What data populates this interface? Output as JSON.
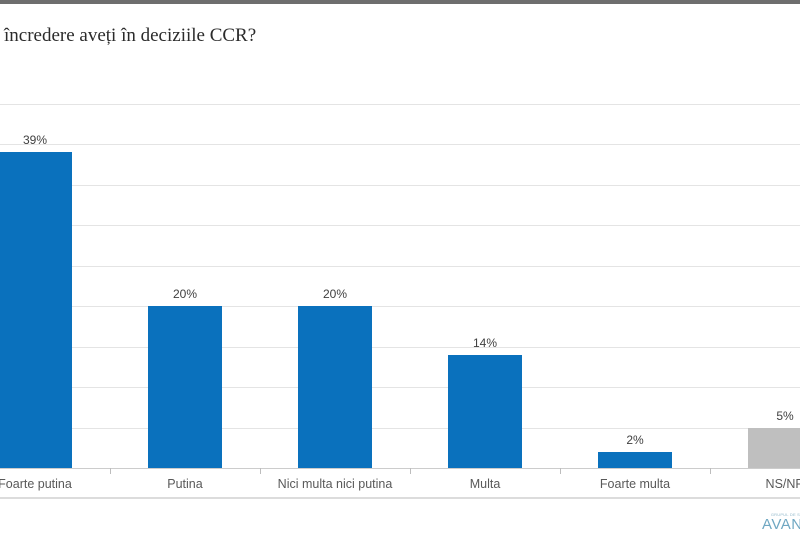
{
  "window": {
    "top_edge_color": "#6E6E6E"
  },
  "chart_data": {
    "type": "bar",
    "title": "încredere aveți în deciziile CCR?",
    "categories": [
      "Foarte putina",
      "Putina",
      "Nici multa nici putina",
      "Multa",
      "Foarte multa",
      "NS/NR"
    ],
    "values": [
      39,
      20,
      20,
      14,
      2,
      5
    ],
    "value_labels": [
      "39%",
      "20%",
      "20%",
      "14%",
      "2%",
      "5%"
    ],
    "xlabel": "",
    "ylabel": "",
    "ylim": [
      0,
      45
    ],
    "gridline_step_pct": 5,
    "grid": "on",
    "legend": "none",
    "bar_colors": [
      "#0A71BD",
      "#0A71BD",
      "#0A71BD",
      "#0A71BD",
      "#0A71BD",
      "#BFBFBF"
    ],
    "accent_blue": "#0A71BD",
    "neutral_gray": "#BFBFBF",
    "note": "chart clipped at left and right edges of screenshot"
  },
  "logo": {
    "small_text": "GRUPUL DE S",
    "main_text": "AVAN",
    "color": "#6FA7C2"
  }
}
